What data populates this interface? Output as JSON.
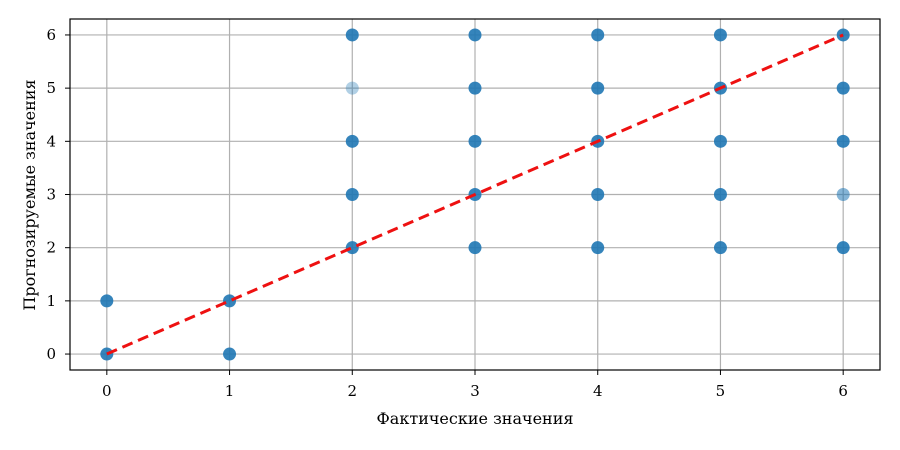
{
  "chart_data": {
    "type": "scatter",
    "xlabel": "Фактические значения",
    "ylabel": "Прогнозируемые значения",
    "xlim": [
      -0.3,
      6.3
    ],
    "ylim": [
      -0.3,
      6.3
    ],
    "xticks": [
      "0",
      "1",
      "2",
      "3",
      "4",
      "5",
      "6"
    ],
    "yticks": [
      "0",
      "1",
      "2",
      "3",
      "4",
      "5",
      "6"
    ],
    "grid": true,
    "point_color": "#1f77b4",
    "points": [
      {
        "x": 0,
        "y": 0,
        "alpha": 0.9
      },
      {
        "x": 0,
        "y": 1,
        "alpha": 0.9
      },
      {
        "x": 1,
        "y": 0,
        "alpha": 0.9
      },
      {
        "x": 1,
        "y": 1,
        "alpha": 0.9
      },
      {
        "x": 2,
        "y": 2,
        "alpha": 0.9
      },
      {
        "x": 2,
        "y": 3,
        "alpha": 0.9
      },
      {
        "x": 2,
        "y": 4,
        "alpha": 0.9
      },
      {
        "x": 2,
        "y": 5,
        "alpha": 0.35
      },
      {
        "x": 2,
        "y": 6,
        "alpha": 0.9
      },
      {
        "x": 3,
        "y": 2,
        "alpha": 0.9
      },
      {
        "x": 3,
        "y": 3,
        "alpha": 0.9
      },
      {
        "x": 3,
        "y": 4,
        "alpha": 0.9
      },
      {
        "x": 3,
        "y": 5,
        "alpha": 0.9
      },
      {
        "x": 3,
        "y": 6,
        "alpha": 0.9
      },
      {
        "x": 4,
        "y": 2,
        "alpha": 0.9
      },
      {
        "x": 4,
        "y": 3,
        "alpha": 0.9
      },
      {
        "x": 4,
        "y": 4,
        "alpha": 0.9
      },
      {
        "x": 4,
        "y": 5,
        "alpha": 0.9
      },
      {
        "x": 4,
        "y": 6,
        "alpha": 0.9
      },
      {
        "x": 5,
        "y": 2,
        "alpha": 0.9
      },
      {
        "x": 5,
        "y": 3,
        "alpha": 0.9
      },
      {
        "x": 5,
        "y": 4,
        "alpha": 0.9
      },
      {
        "x": 5,
        "y": 5,
        "alpha": 0.9
      },
      {
        "x": 5,
        "y": 6,
        "alpha": 0.9
      },
      {
        "x": 6,
        "y": 2,
        "alpha": 0.9
      },
      {
        "x": 6,
        "y": 3,
        "alpha": 0.55
      },
      {
        "x": 6,
        "y": 4,
        "alpha": 0.9
      },
      {
        "x": 6,
        "y": 5,
        "alpha": 0.9
      },
      {
        "x": 6,
        "y": 6,
        "alpha": 0.9
      }
    ],
    "reference_line": {
      "x": [
        0,
        6
      ],
      "y": [
        0,
        6
      ],
      "color": "#ee1111",
      "style": "dashed"
    }
  }
}
